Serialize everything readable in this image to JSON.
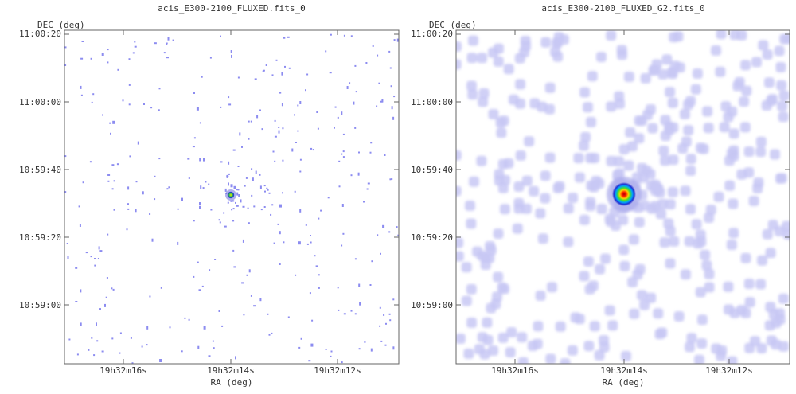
{
  "panels": [
    {
      "title": "acis_E300-2100_FLUXED.fits_0",
      "ylabel": "DEC (deg)",
      "xlabel": "RA (deg)",
      "yticks": [
        "11:00:20",
        "11:00:00",
        "10:59:40",
        "10:59:20",
        "10:59:00"
      ],
      "xticks": [
        "19h32m16s",
        "19h32m14s",
        "19h32m12s"
      ]
    },
    {
      "title": "acis_E300-2100_FLUXED_G2.fits_0",
      "ylabel": "DEC (deg)",
      "xlabel": "RA (deg)",
      "yticks": [
        "11:00:20",
        "11:00:00",
        "10:59:40",
        "10:59:20",
        "10:59:00"
      ],
      "xticks": [
        "19h32m16s",
        "19h32m14s",
        "19h32m12s"
      ]
    }
  ],
  "colors": {
    "background": "#ffffff",
    "axis": "#666666",
    "event": "#8c8cf0",
    "smoothed_event": "#c8c8f4",
    "source_core": "#cc0000"
  },
  "chart_data": [
    {
      "type": "heatmap",
      "title": "acis_E300-2100_FLUXED.fits_0",
      "xlabel": "RA (deg)",
      "ylabel": "DEC (deg)",
      "x_ticks": [
        "19h32m16s",
        "19h32m14s",
        "19h32m12s"
      ],
      "y_ticks": [
        "11:00:20",
        "11:00:00",
        "10:59:40",
        "10:59:20",
        "10:59:00"
      ],
      "colormap": "rainbow",
      "smoothing": "none",
      "source": {
        "ra": "19h32m14s",
        "dec": "10:59:33"
      }
    },
    {
      "type": "heatmap",
      "title": "acis_E300-2100_FLUXED_G2.fits_0",
      "xlabel": "RA (deg)",
      "ylabel": "DEC (deg)",
      "x_ticks": [
        "19h32m16s",
        "19h32m14s",
        "19h32m12s"
      ],
      "y_ticks": [
        "11:00:20",
        "11:00:00",
        "10:59:40",
        "10:59:20",
        "10:59:00"
      ],
      "colormap": "rainbow",
      "smoothing": "gaussian",
      "source": {
        "ra": "19h32m14s",
        "dec": "10:59:33"
      }
    }
  ]
}
